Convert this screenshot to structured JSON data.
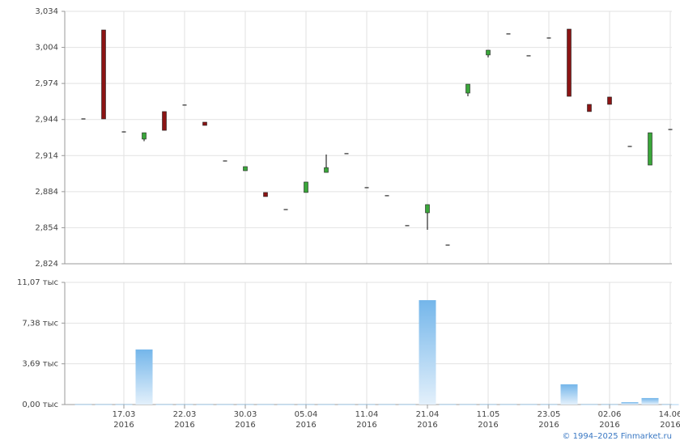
{
  "chart_data": [
    {
      "type": "candlestick",
      "up_color": "#3aa63a",
      "down_color": "#8b1414",
      "grid": true,
      "ylim": [
        2824,
        3034
      ],
      "yticks": [
        {
          "value": 2824,
          "label": "2,824"
        },
        {
          "value": 2854,
          "label": "2,854"
        },
        {
          "value": 2884,
          "label": "2,884"
        },
        {
          "value": 2914,
          "label": "2,914"
        },
        {
          "value": 2944,
          "label": "2,944"
        },
        {
          "value": 2974,
          "label": "2,974"
        },
        {
          "value": 3004,
          "label": "3,004"
        },
        {
          "value": 3034,
          "label": "3,034"
        }
      ],
      "open": [
        2944.5,
        3018.5,
        2933.7,
        2927.7,
        2950.6,
        2956,
        2941.8,
        2909.5,
        2901.4,
        2883.3,
        2869.1,
        2883.3,
        2900,
        2915.6,
        2887.3,
        2880.6,
        2855.7,
        2866.4,
        2839.5,
        2966,
        2997.7,
        3015.2,
        2997,
        3011.8,
        3019.2,
        2956.6,
        2962.7,
        2921.6,
        2906.1,
        2935.7
      ],
      "high": [
        2944.5,
        3018.5,
        2933.7,
        2933,
        2950.6,
        2956,
        2941.8,
        2909.5,
        2904.8,
        2883.3,
        2869.1,
        2892,
        2914.9,
        2915.6,
        2887.3,
        2880.6,
        2855.7,
        2873.2,
        2839.5,
        2973.4,
        3001.7,
        3015.2,
        2997,
        3011.8,
        3019.2,
        2956.6,
        2962.7,
        2921.6,
        2933,
        2935.7
      ],
      "low": [
        2944.5,
        2944.5,
        2933.7,
        2926,
        2935,
        2956,
        2939.1,
        2909.5,
        2901.4,
        2879.9,
        2869.1,
        2883.3,
        2900,
        2915.6,
        2887.3,
        2880.6,
        2855.7,
        2852.3,
        2839.5,
        2963.3,
        2995.6,
        3015.2,
        2997,
        3011.8,
        2963.3,
        2950.6,
        2956.6,
        2921.6,
        2906.1,
        2935.7
      ],
      "close": [
        2944.5,
        2944.5,
        2933.7,
        2933,
        2935,
        2956,
        2939.1,
        2909.5,
        2904.8,
        2879.9,
        2869.1,
        2892,
        2904,
        2915.6,
        2887.3,
        2880.6,
        2855.7,
        2873.2,
        2839.5,
        2973.4,
        3001.7,
        3015.2,
        2997,
        3011.8,
        2963.3,
        2950.6,
        2956.6,
        2921.6,
        2933,
        2935.7
      ]
    },
    {
      "type": "bar",
      "color": "#7fbcec",
      "grid": true,
      "ylim": [
        0,
        11.07
      ],
      "yticks": [
        {
          "value": 0,
          "label": "0,00 тыс"
        },
        {
          "value": 3.69,
          "label": "3,69 тыс"
        },
        {
          "value": 7.38,
          "label": "7,38 тыс"
        },
        {
          "value": 11.07,
          "label": "11,07 тыс"
        }
      ],
      "categories": [
        null,
        null,
        "17.03\n2016",
        null,
        null,
        "22.03\n2016",
        null,
        null,
        "30.03\n2016",
        null,
        null,
        "05.04\n2016",
        null,
        null,
        "11.04\n2016",
        null,
        null,
        "21.04\n2016",
        null,
        null,
        "11.05\n2016",
        null,
        null,
        "23.05\n2016",
        null,
        null,
        "02.06\n2016",
        null,
        null,
        "14.06\n2016"
      ],
      "values": [
        0.02,
        0.02,
        0.02,
        4.99,
        0.02,
        0.02,
        0.02,
        0.02,
        0.02,
        0.02,
        0.02,
        0.02,
        0.02,
        0.02,
        0.02,
        0.02,
        0.02,
        9.46,
        0.02,
        0.02,
        0.02,
        0.02,
        0.02,
        0.02,
        1.83,
        0.02,
        0.02,
        0.22,
        0.59,
        0.02
      ]
    }
  ],
  "footer": "© 1994–2025 Finmarket.ru"
}
